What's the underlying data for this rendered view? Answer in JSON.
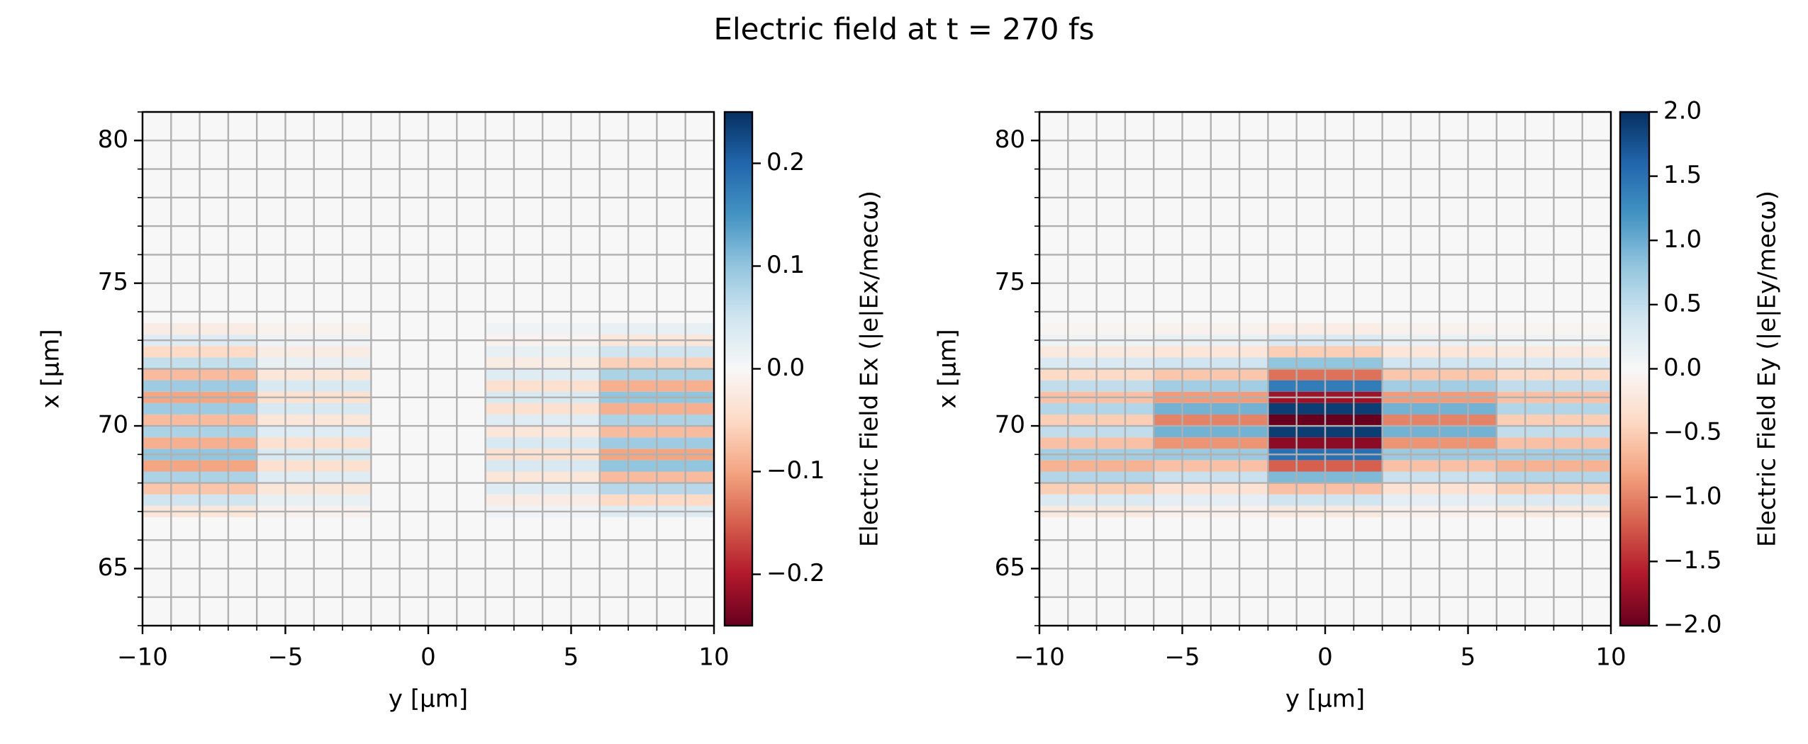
{
  "title": "Electric field at t = 270 fs",
  "chart_data": [
    {
      "type": "heatmap",
      "xlabel": "y [µm]",
      "ylabel": "x [µm]",
      "colorbar_label": "Electric Field Ex (|e|Ex/mecω)",
      "xlim": [
        -10,
        10
      ],
      "ylim": [
        63,
        81
      ],
      "xticks": [
        {
          "value": -10,
          "label": "−10"
        },
        {
          "value": -5,
          "label": "−5"
        },
        0,
        5,
        10
      ],
      "yticks": [
        65,
        70,
        75,
        80
      ],
      "xminorticks": [
        -10,
        -9,
        -8,
        -7,
        -6,
        -5,
        -4,
        -3,
        -2,
        -1,
        0,
        1,
        2,
        3,
        4,
        5,
        6,
        7,
        8,
        9,
        10
      ],
      "yminorticks": [
        63,
        64,
        65,
        66,
        67,
        68,
        69,
        70,
        71,
        72,
        73,
        74,
        75,
        76,
        77,
        78,
        79,
        80,
        81
      ],
      "grid": true,
      "clim": [
        -0.25,
        0.25
      ],
      "cticks": [
        {
          "value": -0.2,
          "label": "−0.2"
        },
        {
          "value": -0.1,
          "label": "−0.1"
        },
        {
          "value": 0,
          "label": "0.0"
        },
        0.1,
        0.2
      ],
      "colormap": [
        "#67001f",
        "#b2182b",
        "#d6604d",
        "#f4a582",
        "#fddbc7",
        "#f7f7f7",
        "#d1e5f0",
        "#92c5de",
        "#4393c3",
        "#2166ac",
        "#053061"
      ],
      "rows": [
        67.0,
        67.4,
        67.8,
        68.2,
        68.6,
        69.0,
        69.4,
        69.8,
        70.2,
        70.6,
        71.0,
        71.4,
        71.8,
        72.2,
        72.6,
        73.0,
        73.4
      ],
      "cols": [
        -8,
        -4,
        0,
        4,
        8
      ],
      "z": [
        [
          -0.03,
          -0.01,
          0,
          0.01,
          0.03
        ],
        [
          0.05,
          0.02,
          0,
          -0.02,
          -0.05
        ],
        [
          -0.07,
          -0.03,
          0,
          0.03,
          0.07
        ],
        [
          0.08,
          0.03,
          0,
          -0.03,
          -0.08
        ],
        [
          -0.1,
          -0.04,
          0,
          0.04,
          0.1
        ],
        [
          0.1,
          0.04,
          0,
          -0.04,
          -0.1
        ],
        [
          -0.09,
          -0.04,
          0,
          0.04,
          0.09
        ],
        [
          0.08,
          0.03,
          0,
          -0.03,
          -0.08
        ],
        [
          -0.08,
          -0.03,
          0,
          0.03,
          0.08
        ],
        [
          0.09,
          0.04,
          0,
          -0.04,
          -0.09
        ],
        [
          -0.1,
          -0.04,
          0,
          0.04,
          0.1
        ],
        [
          0.09,
          0.04,
          0,
          -0.04,
          -0.09
        ],
        [
          -0.08,
          -0.03,
          0,
          0.03,
          0.08
        ],
        [
          0.06,
          0.02,
          0,
          -0.02,
          -0.06
        ],
        [
          -0.05,
          -0.02,
          0,
          0.02,
          0.05
        ],
        [
          0.03,
          0.01,
          0,
          -0.01,
          -0.03
        ],
        [
          -0.02,
          -0.01,
          0,
          0.01,
          0.02
        ]
      ]
    },
    {
      "type": "heatmap",
      "xlabel": "y [µm]",
      "ylabel": "x [µm]",
      "colorbar_label": "Electric Field Ey (|e|Ey/mecω)",
      "xlim": [
        -10,
        10
      ],
      "ylim": [
        63,
        81
      ],
      "xticks": [
        {
          "value": -10,
          "label": "−10"
        },
        {
          "value": -5,
          "label": "−5"
        },
        0,
        5,
        10
      ],
      "yticks": [
        65,
        70,
        75,
        80
      ],
      "xminorticks": [
        -10,
        -9,
        -8,
        -7,
        -6,
        -5,
        -4,
        -3,
        -2,
        -1,
        0,
        1,
        2,
        3,
        4,
        5,
        6,
        7,
        8,
        9,
        10
      ],
      "yminorticks": [
        63,
        64,
        65,
        66,
        67,
        68,
        69,
        70,
        71,
        72,
        73,
        74,
        75,
        76,
        77,
        78,
        79,
        80,
        81
      ],
      "grid": true,
      "clim": [
        -2,
        2
      ],
      "cticks": [
        {
          "value": -2,
          "label": "−2.0"
        },
        {
          "value": -1.5,
          "label": "−1.5"
        },
        {
          "value": -1,
          "label": "−1.0"
        },
        {
          "value": -0.5,
          "label": "−0.5"
        },
        {
          "value": 0,
          "label": "0.0"
        },
        0.5,
        {
          "value": 1,
          "label": "1.0"
        },
        1.5,
        {
          "value": 2,
          "label": "2.0"
        }
      ],
      "colormap": [
        "#67001f",
        "#b2182b",
        "#d6604d",
        "#f4a582",
        "#fddbc7",
        "#f7f7f7",
        "#d1e5f0",
        "#92c5de",
        "#4393c3",
        "#2166ac",
        "#053061"
      ],
      "rows": [
        67.0,
        67.4,
        67.8,
        68.2,
        68.6,
        69.0,
        69.4,
        69.8,
        70.2,
        70.6,
        71.0,
        71.4,
        71.8,
        72.2,
        72.6,
        73.0,
        73.4
      ],
      "cols": [
        -8,
        -4,
        0,
        4,
        8
      ],
      "z": [
        [
          -0.2,
          -0.1,
          -0.2,
          -0.1,
          -0.2
        ],
        [
          0.3,
          0.2,
          0.4,
          0.2,
          0.3
        ],
        [
          -0.5,
          -0.3,
          -0.6,
          -0.3,
          -0.5
        ],
        [
          0.6,
          0.45,
          0.9,
          0.45,
          0.6
        ],
        [
          -0.7,
          -0.6,
          -1.2,
          -0.6,
          -0.7
        ],
        [
          0.7,
          0.75,
          1.5,
          0.75,
          0.7
        ],
        [
          -0.6,
          -0.9,
          -1.8,
          -0.9,
          -0.6
        ],
        [
          0.5,
          0.95,
          1.9,
          0.95,
          0.5
        ],
        [
          -0.5,
          -1.0,
          -2.0,
          -1.0,
          -0.5
        ],
        [
          0.6,
          0.95,
          1.9,
          0.95,
          0.6
        ],
        [
          -0.6,
          -0.85,
          -1.7,
          -0.85,
          -0.6
        ],
        [
          0.5,
          0.7,
          1.4,
          0.7,
          0.5
        ],
        [
          -0.4,
          -0.55,
          -1.1,
          -0.55,
          -0.4
        ],
        [
          0.3,
          0.4,
          0.8,
          0.4,
          0.3
        ],
        [
          -0.2,
          -0.25,
          -0.5,
          -0.25,
          -0.2
        ],
        [
          0.1,
          0.15,
          0.3,
          0.15,
          0.1
        ],
        [
          -0.05,
          -0.08,
          -0.15,
          -0.08,
          -0.05
        ]
      ]
    }
  ]
}
